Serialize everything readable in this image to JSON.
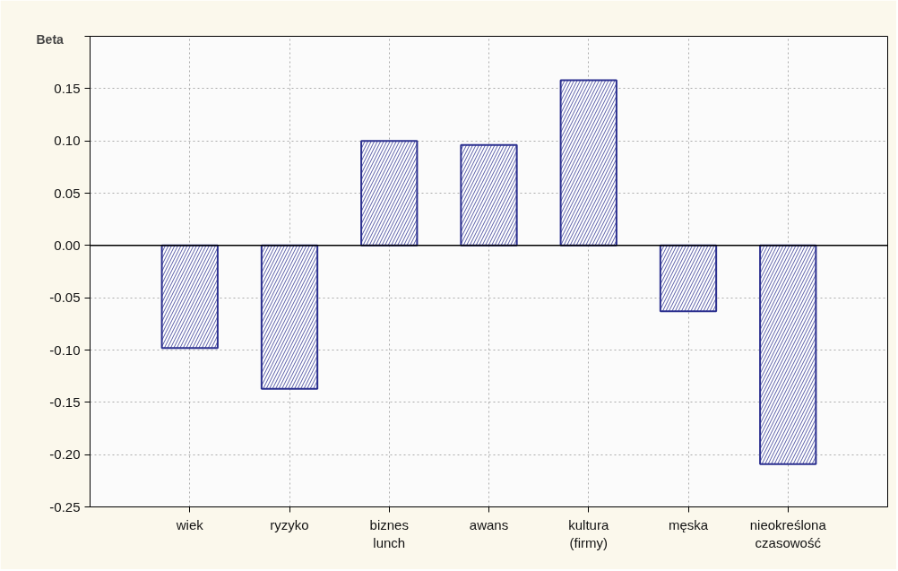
{
  "chart_data": {
    "type": "bar",
    "ylabel": "Beta",
    "categories": [
      "wiek",
      "ryzyko",
      "biznes\nlunch",
      "awans",
      "kultura\n(firmy)",
      "męska",
      "nieokreślona\nczasowość"
    ],
    "values": [
      -0.098,
      -0.137,
      0.1,
      0.096,
      0.158,
      -0.063,
      -0.209
    ],
    "color": "#2b2f8f",
    "ylim": [
      -0.25,
      0.2
    ],
    "yticks": [
      {
        "value": -0.25,
        "label": "-0.25"
      },
      {
        "value": -0.2,
        "label": "-0.20"
      },
      {
        "value": -0.15,
        "label": "-0.15"
      },
      {
        "value": -0.1,
        "label": "-0.10"
      },
      {
        "value": -0.05,
        "label": "-0.05"
      },
      {
        "value": 0.0,
        "label": "0.00"
      },
      {
        "value": 0.05,
        "label": "0.05"
      },
      {
        "value": 0.1,
        "label": "0.10"
      },
      {
        "value": 0.15,
        "label": "0.15"
      },
      {
        "value": 0.2,
        "label": null
      }
    ],
    "ref_lines": [
      {
        "axis": "y",
        "value": 0.0,
        "label": null,
        "color": "#000000"
      }
    ],
    "grid": true
  }
}
